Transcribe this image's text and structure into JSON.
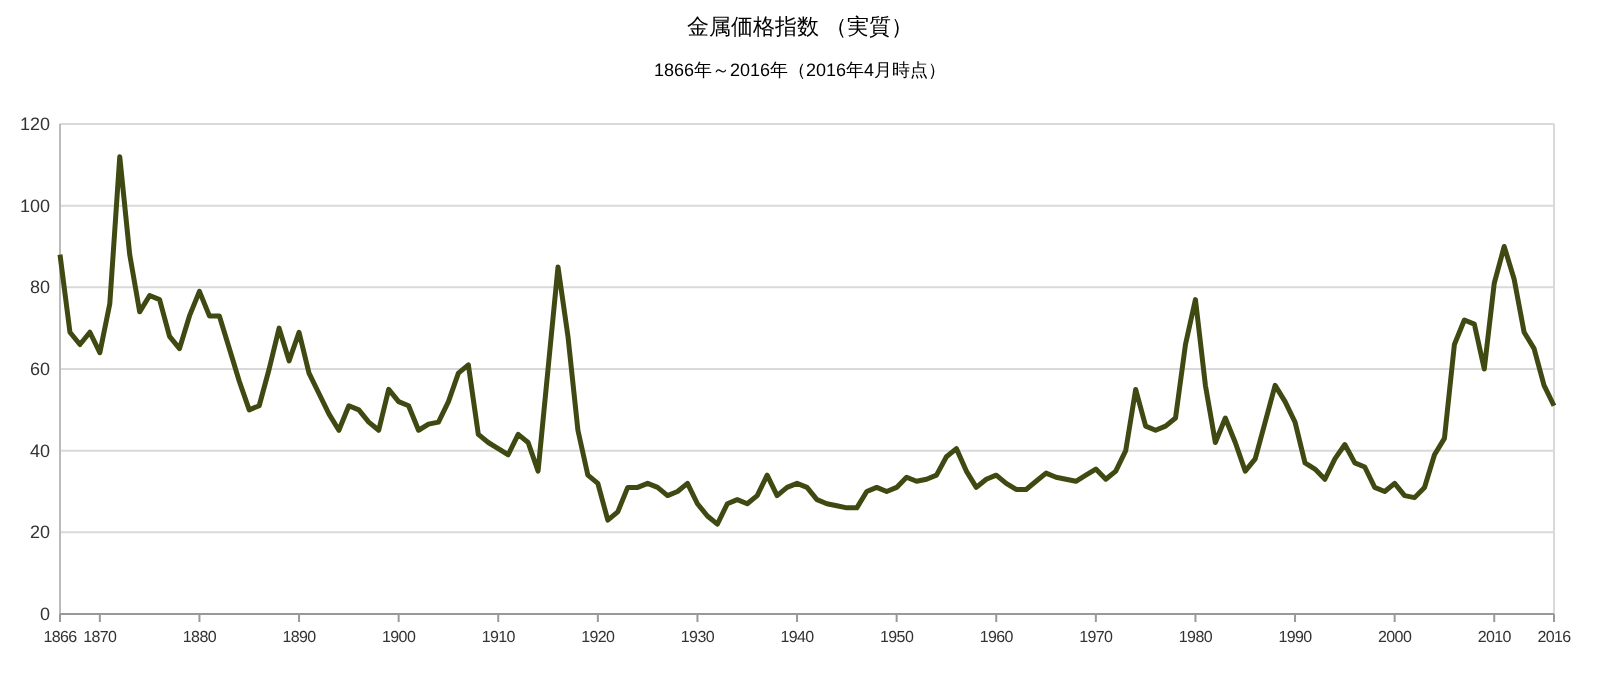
{
  "chart_data": {
    "type": "line",
    "title": "金属価格指数 （実質）",
    "subtitle": "1866年～2016年（2016年4月時点）",
    "x": [
      1866,
      1867,
      1868,
      1869,
      1870,
      1871,
      1872,
      1873,
      1874,
      1875,
      1876,
      1877,
      1878,
      1879,
      1880,
      1881,
      1882,
      1883,
      1884,
      1885,
      1886,
      1887,
      1888,
      1889,
      1890,
      1891,
      1892,
      1893,
      1894,
      1895,
      1896,
      1897,
      1898,
      1899,
      1900,
      1901,
      1902,
      1903,
      1904,
      1905,
      1906,
      1907,
      1908,
      1909,
      1910,
      1911,
      1912,
      1913,
      1914,
      1915,
      1916,
      1917,
      1918,
      1919,
      1920,
      1921,
      1922,
      1923,
      1924,
      1925,
      1926,
      1927,
      1928,
      1929,
      1930,
      1931,
      1932,
      1933,
      1934,
      1935,
      1936,
      1937,
      1938,
      1939,
      1940,
      1941,
      1942,
      1943,
      1944,
      1945,
      1946,
      1947,
      1948,
      1949,
      1950,
      1951,
      1952,
      1953,
      1954,
      1955,
      1956,
      1957,
      1958,
      1959,
      1960,
      1961,
      1962,
      1963,
      1964,
      1965,
      1966,
      1967,
      1968,
      1969,
      1970,
      1971,
      1972,
      1973,
      1974,
      1975,
      1976,
      1977,
      1978,
      1979,
      1980,
      1981,
      1982,
      1983,
      1984,
      1985,
      1986,
      1987,
      1988,
      1989,
      1990,
      1991,
      1992,
      1993,
      1994,
      1995,
      1996,
      1997,
      1998,
      1999,
      2000,
      2001,
      2002,
      2003,
      2004,
      2005,
      2006,
      2007,
      2008,
      2009,
      2010,
      2011,
      2012,
      2013,
      2014,
      2015,
      2016
    ],
    "series": [
      {
        "color": "#3f4a12",
        "values": [
          88,
          69,
          66,
          69,
          64,
          76,
          112,
          88,
          74,
          78,
          77,
          68,
          65,
          73,
          79,
          73,
          73,
          65,
          57,
          50,
          51,
          60,
          70,
          62,
          69,
          59,
          54,
          49,
          45,
          51,
          50,
          47,
          45,
          55,
          52,
          51,
          45,
          46.5,
          47,
          52,
          59,
          61,
          44,
          42,
          40.5,
          39,
          44,
          42,
          35,
          60,
          85,
          68,
          45,
          34,
          32,
          23,
          25,
          31,
          31,
          32,
          31,
          29,
          30,
          32,
          27,
          24,
          22,
          27,
          28,
          27,
          29,
          34,
          29,
          31,
          32,
          31,
          28,
          27,
          26.5,
          26,
          26,
          30,
          31,
          30,
          31,
          33.5,
          32.5,
          33,
          34,
          38.5,
          40.5,
          35,
          31,
          33,
          34,
          32,
          30.5,
          30.5,
          32.5,
          34.5,
          33.5,
          33,
          32.5,
          34,
          35.5,
          33,
          35,
          40,
          55,
          46,
          45,
          46,
          48,
          66,
          77,
          56,
          42,
          48,
          42,
          35,
          38,
          47,
          56,
          52,
          47,
          37,
          35.5,
          33,
          38,
          41.5,
          37,
          36,
          31,
          30,
          32,
          29,
          28.5,
          31,
          39,
          43,
          66,
          72,
          71,
          60,
          81,
          90,
          82,
          69,
          65,
          56,
          51
        ]
      }
    ],
    "xlim": [
      1866,
      2016
    ],
    "xticks": [
      1866,
      1870,
      1880,
      1890,
      1900,
      1910,
      1920,
      1930,
      1940,
      1950,
      1960,
      1970,
      1980,
      1990,
      2000,
      2010,
      2016
    ],
    "ylim": [
      0,
      120
    ],
    "yticks": [
      0,
      20,
      40,
      60,
      80,
      100,
      120
    ],
    "grid": "y",
    "marker": "none",
    "line_style": "solid"
  }
}
